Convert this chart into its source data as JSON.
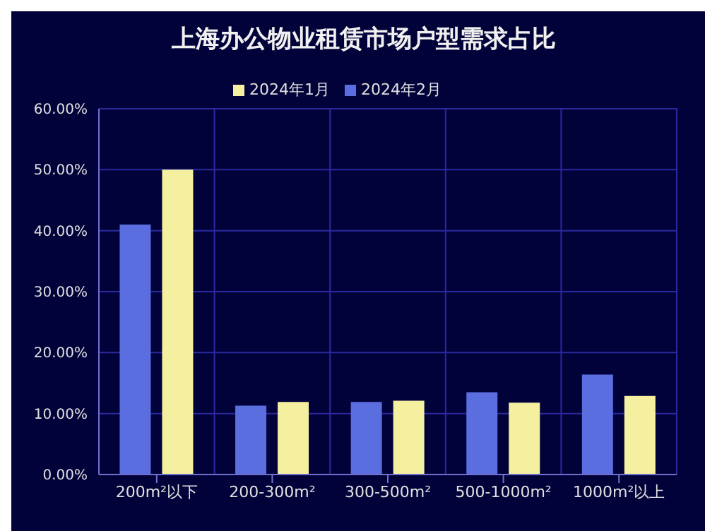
{
  "chart_data": {
    "type": "bar",
    "title": "上海办公物业租赁市场户型需求占比",
    "categories": [
      "200m²以下",
      "200-300m²",
      "300-500m²",
      "500-1000m²",
      "1000m²以上"
    ],
    "series": [
      {
        "name": "2024年2月",
        "color": "#5b6ee0",
        "values": [
          41,
          11.3,
          11.9,
          13.5,
          16.4
        ]
      },
      {
        "name": "2024年1月",
        "color": "#f5f0a0",
        "values": [
          50,
          11.9,
          12.1,
          11.8,
          12.9
        ]
      }
    ],
    "ylim": [
      0,
      60
    ],
    "yticks": [
      {
        "value": 0,
        "label": "0.00%"
      },
      {
        "value": 10,
        "label": "10.00%"
      },
      {
        "value": 20,
        "label": "20.00%"
      },
      {
        "value": 30,
        "label": "30.00%"
      },
      {
        "value": 40,
        "label": "40.00%"
      },
      {
        "value": 50,
        "label": "50.00%"
      },
      {
        "value": 60,
        "label": "60.00%"
      }
    ],
    "grid": true,
    "legend": "top"
  }
}
